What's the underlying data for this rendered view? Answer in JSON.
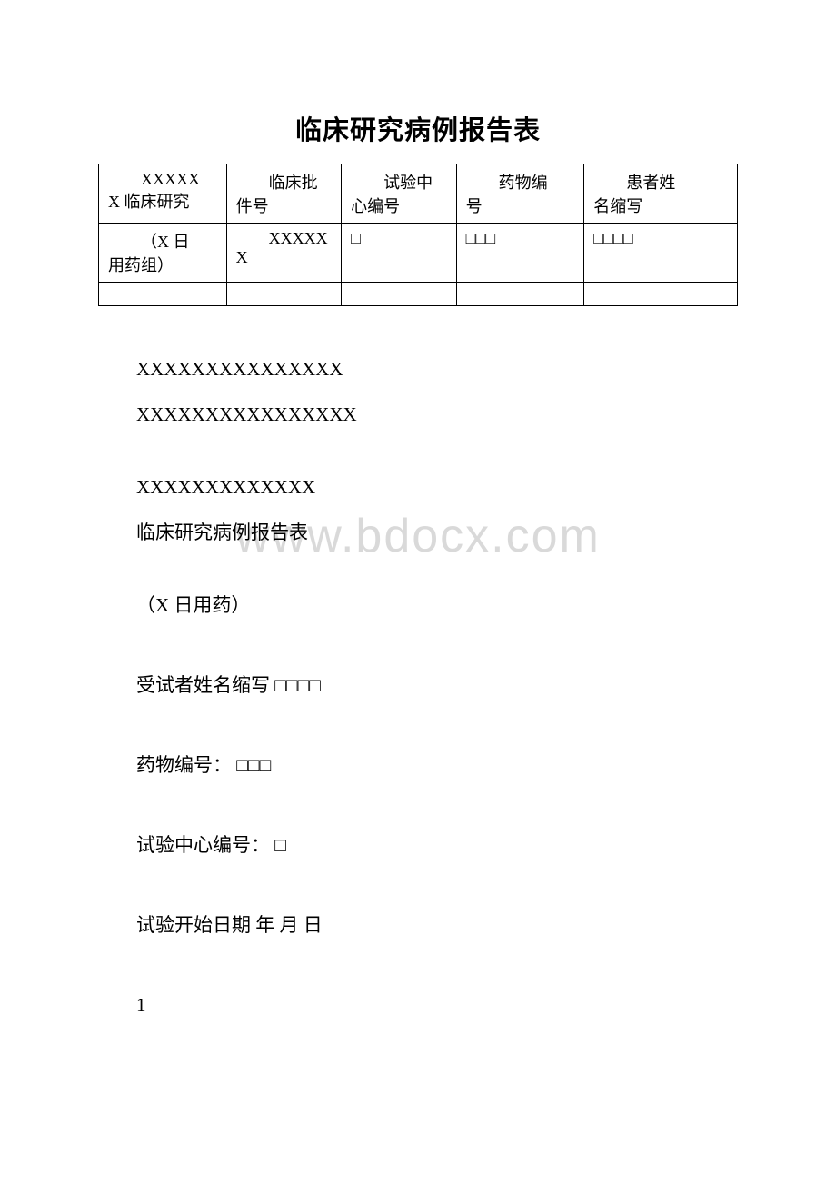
{
  "title": "临床研究病例报告表",
  "table": {
    "row1": {
      "c1a": "XXXXX",
      "c1b": "X 临床研究",
      "c2a": "临床批",
      "c2b": "件号",
      "c3a": "试验中",
      "c3b": "心编号",
      "c4a": "药物编",
      "c4b": "号",
      "c5a": "患者姓",
      "c5b": "名缩写"
    },
    "row2": {
      "c1a": "（X 日",
      "c1b": "用药组）",
      "c2a": "XXXXX",
      "c2b": "X",
      "c3": "□",
      "c4": "□□□",
      "c5": "□□□□"
    }
  },
  "body": {
    "line1": "XXXXXXXXXXXXXXX",
    "line2": "XXXXXXXXXXXXXXXX",
    "line3": "XXXXXXXXXXXXX",
    "line4": "临床研究病例报告表",
    "line5": "（X 日用药）",
    "line6": "受试者姓名缩写 □□□□",
    "line7": "药物编号： □□□",
    "line8": "试验中心编号： □",
    "line9": "试验开始日期 年 月 日",
    "line10": "1"
  },
  "watermark": "www.bdocx.com"
}
